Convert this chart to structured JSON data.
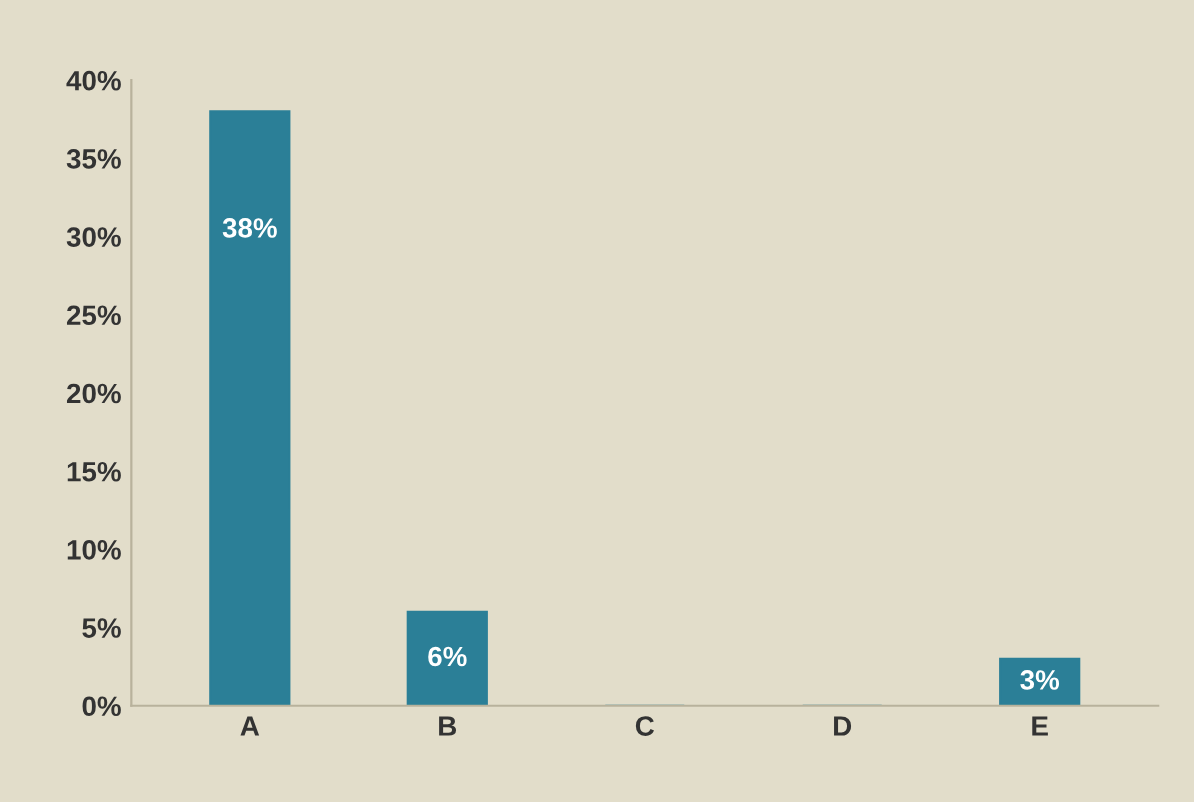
{
  "chart_data": {
    "type": "bar",
    "categories": [
      "A",
      "B",
      "C",
      "D",
      "E"
    ],
    "values": [
      38,
      6,
      0,
      0,
      3
    ],
    "value_labels": [
      "38%",
      "6%",
      null,
      null,
      "3%"
    ],
    "color": "#2b7f97",
    "ylim": [
      0,
      40
    ],
    "yticks": [
      {
        "value": 0,
        "label": "0%"
      },
      {
        "value": 5,
        "label": "5%"
      },
      {
        "value": 10,
        "label": "10%"
      },
      {
        "value": 15,
        "label": "15%"
      },
      {
        "value": 20,
        "label": "20%"
      },
      {
        "value": 25,
        "label": "25%"
      },
      {
        "value": 30,
        "label": "30%"
      },
      {
        "value": 35,
        "label": "35%"
      },
      {
        "value": 40,
        "label": "40%"
      }
    ],
    "grid": false
  }
}
